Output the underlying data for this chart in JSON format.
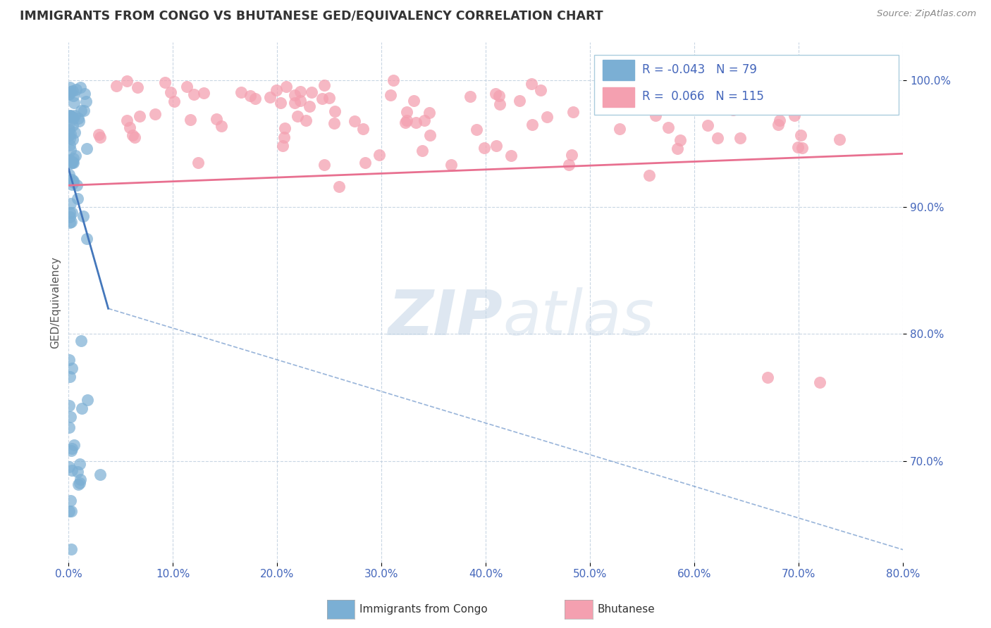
{
  "title": "IMMIGRANTS FROM CONGO VS BHUTANESE GED/EQUIVALENCY CORRELATION CHART",
  "source_text": "Source: ZipAtlas.com",
  "ylabel": "GED/Equivalency",
  "legend_labels": [
    "Immigrants from Congo",
    "Bhutanese"
  ],
  "r_congo": -0.043,
  "n_congo": 79,
  "r_bhutanese": 0.066,
  "n_bhutanese": 115,
  "xlim": [
    0.0,
    0.8
  ],
  "ylim": [
    0.62,
    1.03
  ],
  "xticks": [
    0.0,
    0.1,
    0.2,
    0.3,
    0.4,
    0.5,
    0.6,
    0.7,
    0.8
  ],
  "xticklabels": [
    "0.0%",
    "10.0%",
    "20.0%",
    "30.0%",
    "40.0%",
    "50.0%",
    "60.0%",
    "70.0%",
    "80.0%"
  ],
  "yticks": [
    0.7,
    0.8,
    0.9,
    1.0
  ],
  "yticklabels": [
    "70.0%",
    "80.0%",
    "90.0%",
    "100.0%"
  ],
  "color_congo": "#7BAFD4",
  "color_bhutanese": "#F4A0B0",
  "trendline_congo_color": "#4477BB",
  "trendline_bhutanese_color": "#E87090",
  "grid_color": "#BBCCDD",
  "tick_color": "#4466BB",
  "watermark_color": "#C8D8E8",
  "background_color": "#FFFFFF"
}
